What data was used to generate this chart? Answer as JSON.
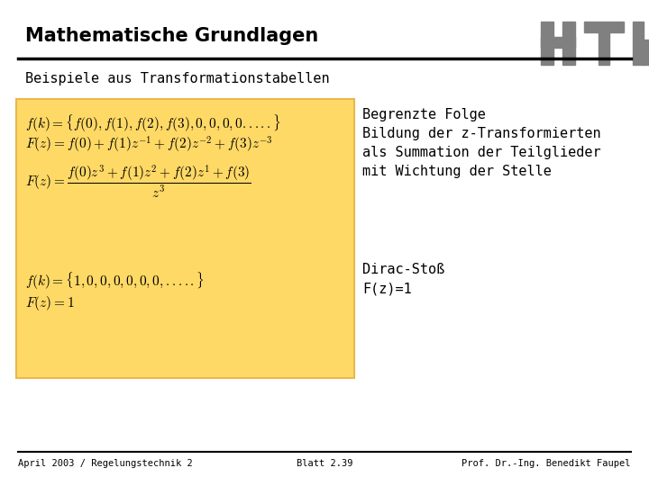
{
  "title": "Mathematische Grundlagen",
  "subtitle": "Beispiele aus Transformationstabellen",
  "bg_color": "#ffffff",
  "box_color": "#FFD966",
  "box_border_color": "#E8B84B",
  "title_fontsize": 15,
  "subtitle_fontsize": 11,
  "formula_fontsize": 11,
  "text_fontsize": 11,
  "footer_fontsize": 7.5,
  "footer_left": "April 2003 / Regelungstechnik 2",
  "footer_center": "Blatt 2.39",
  "footer_right": "Prof. Dr.-Ing. Benedikt Faupel",
  "right_text_line1": "Begrenzte Folge",
  "right_text_line2": "Bildung der z-Transformierten",
  "right_text_line3": "als Summation der Teilglieder",
  "right_text_line4": "mit Wichtung der Stelle",
  "right_text_line5": "Dirac-Stoß",
  "right_text_line6": "F(z)=1",
  "logo_color": "#808080"
}
